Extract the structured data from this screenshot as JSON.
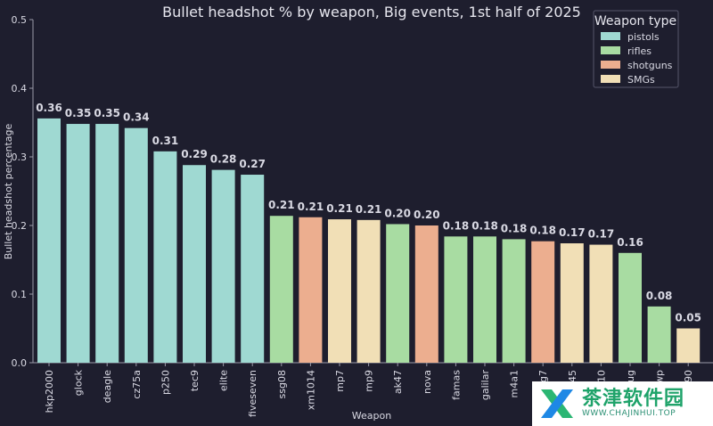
{
  "chart_data": {
    "type": "bar",
    "title": "Bullet headshot % by weapon, Big events, 1st half of 2025",
    "xlabel": "Weapon",
    "ylabel": "Bullet headshot percentage",
    "ylim": [
      0,
      0.5
    ],
    "yticks": [
      "0.0",
      "0.1",
      "0.2",
      "0.3",
      "0.4",
      "0.5"
    ],
    "legend": {
      "title": "Weapon type",
      "position": "top-right",
      "entries": [
        {
          "name": "pistols",
          "color": "#9fd9d2"
        },
        {
          "name": "rifles",
          "color": "#a8dca2"
        },
        {
          "name": "shotguns",
          "color": "#ecae8f"
        },
        {
          "name": "SMGs",
          "color": "#f1dfb6"
        }
      ]
    },
    "categories": [
      "hkp2000",
      "glock",
      "deagle",
      "cz75a",
      "p250",
      "tec9",
      "elite",
      "fiveseven",
      "ssg08",
      "xm1014",
      "mp7",
      "mp9",
      "ak47",
      "nova",
      "famas",
      "galilar",
      "m4a1",
      "mag7",
      "ump45",
      "mac10",
      "aug",
      "awp",
      "p90"
    ],
    "values": [
      0.356,
      0.348,
      0.348,
      0.342,
      0.308,
      0.288,
      0.281,
      0.274,
      0.214,
      0.212,
      0.209,
      0.208,
      0.202,
      0.2,
      0.184,
      0.184,
      0.18,
      0.177,
      0.174,
      0.172,
      0.16,
      0.082,
      0.05
    ],
    "value_labels": [
      "0.36",
      "0.35",
      "0.35",
      "0.34",
      "0.31",
      "0.29",
      "0.28",
      "0.27",
      "0.21",
      "0.21",
      "0.21",
      "0.21",
      "0.20",
      "0.20",
      "0.18",
      "0.18",
      "0.18",
      "0.18",
      "0.17",
      "0.17",
      "0.16",
      "0.08",
      "0.05"
    ],
    "weapon_types": [
      "pistols",
      "pistols",
      "pistols",
      "pistols",
      "pistols",
      "pistols",
      "pistols",
      "pistols",
      "rifles",
      "shotguns",
      "SMGs",
      "SMGs",
      "rifles",
      "shotguns",
      "rifles",
      "rifles",
      "rifles",
      "shotguns",
      "SMGs",
      "SMGs",
      "rifles",
      "rifles",
      "SMGs"
    ]
  },
  "watermark": {
    "cn": "茶津软件园",
    "url": "WWW.CHAJINHUI.TOP"
  }
}
